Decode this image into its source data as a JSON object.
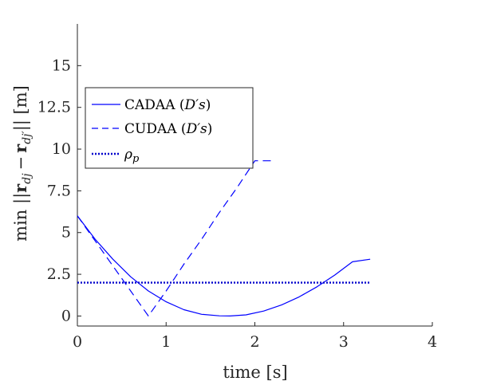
{
  "chart_data": {
    "type": "line",
    "xlabel": "time [s]",
    "ylabel": "min ||r_dj − r_dj'|| [m]",
    "ylabel_parts": {
      "prefix": "min ||",
      "r1": "r",
      "sub1": "dj",
      "minus": "−",
      "r2": "r",
      "sub2": "dj′",
      "suffix": "|| [m]"
    },
    "xlim": [
      0,
      4
    ],
    "ylim": [
      -0.6,
      17.5
    ],
    "xticks": [
      0,
      1,
      2,
      3,
      4
    ],
    "xtick_labels": [
      "0",
      "1",
      "2",
      "3",
      "4"
    ],
    "yticks": [
      0,
      2.5,
      5,
      7.5,
      10,
      12.5,
      15
    ],
    "ytick_labels": [
      "0",
      "2.5",
      "5",
      "7.5",
      "10",
      "12.5",
      "15"
    ],
    "grid": false,
    "legend_position": "upper-left",
    "series": [
      {
        "name": "CADAA (D′s)",
        "name_parts": {
          "prefix": "CADAA (",
          "math": "D′s",
          "suffix": ")"
        },
        "style": "solid",
        "color": "#0000ff",
        "x": [
          0,
          0.2,
          0.4,
          0.6,
          0.8,
          1.0,
          1.2,
          1.4,
          1.6,
          1.72,
          1.9,
          2.1,
          2.3,
          2.5,
          2.7,
          2.9,
          3.1,
          3.3
        ],
        "y": [
          6.0,
          4.6,
          3.4,
          2.35,
          1.5,
          0.85,
          0.38,
          0.1,
          0.01,
          0.0,
          0.07,
          0.3,
          0.66,
          1.15,
          1.75,
          2.45,
          3.25,
          3.4
        ]
      },
      {
        "name": "CUDAA (D′s)",
        "name_parts": {
          "prefix": "CUDAA (",
          "math": "D′s",
          "suffix": ")"
        },
        "style": "dashed",
        "color": "#0000ff",
        "x": [
          0,
          0.2,
          0.4,
          0.6,
          0.8,
          1.0,
          1.2,
          1.4,
          1.6,
          1.8,
          2.0,
          2.2
        ],
        "y": [
          6.0,
          4.5,
          3.0,
          1.5,
          0.0,
          1.5,
          3.1,
          4.6,
          6.2,
          7.7,
          9.3,
          9.3
        ]
      },
      {
        "name": "ρp",
        "name_parts": {
          "prefix": "",
          "math": "ρ",
          "sub": "p",
          "suffix": ""
        },
        "style": "dotted",
        "color": "#0000cc",
        "x": [
          0,
          3.3
        ],
        "y": [
          2.0,
          2.0
        ]
      }
    ]
  }
}
